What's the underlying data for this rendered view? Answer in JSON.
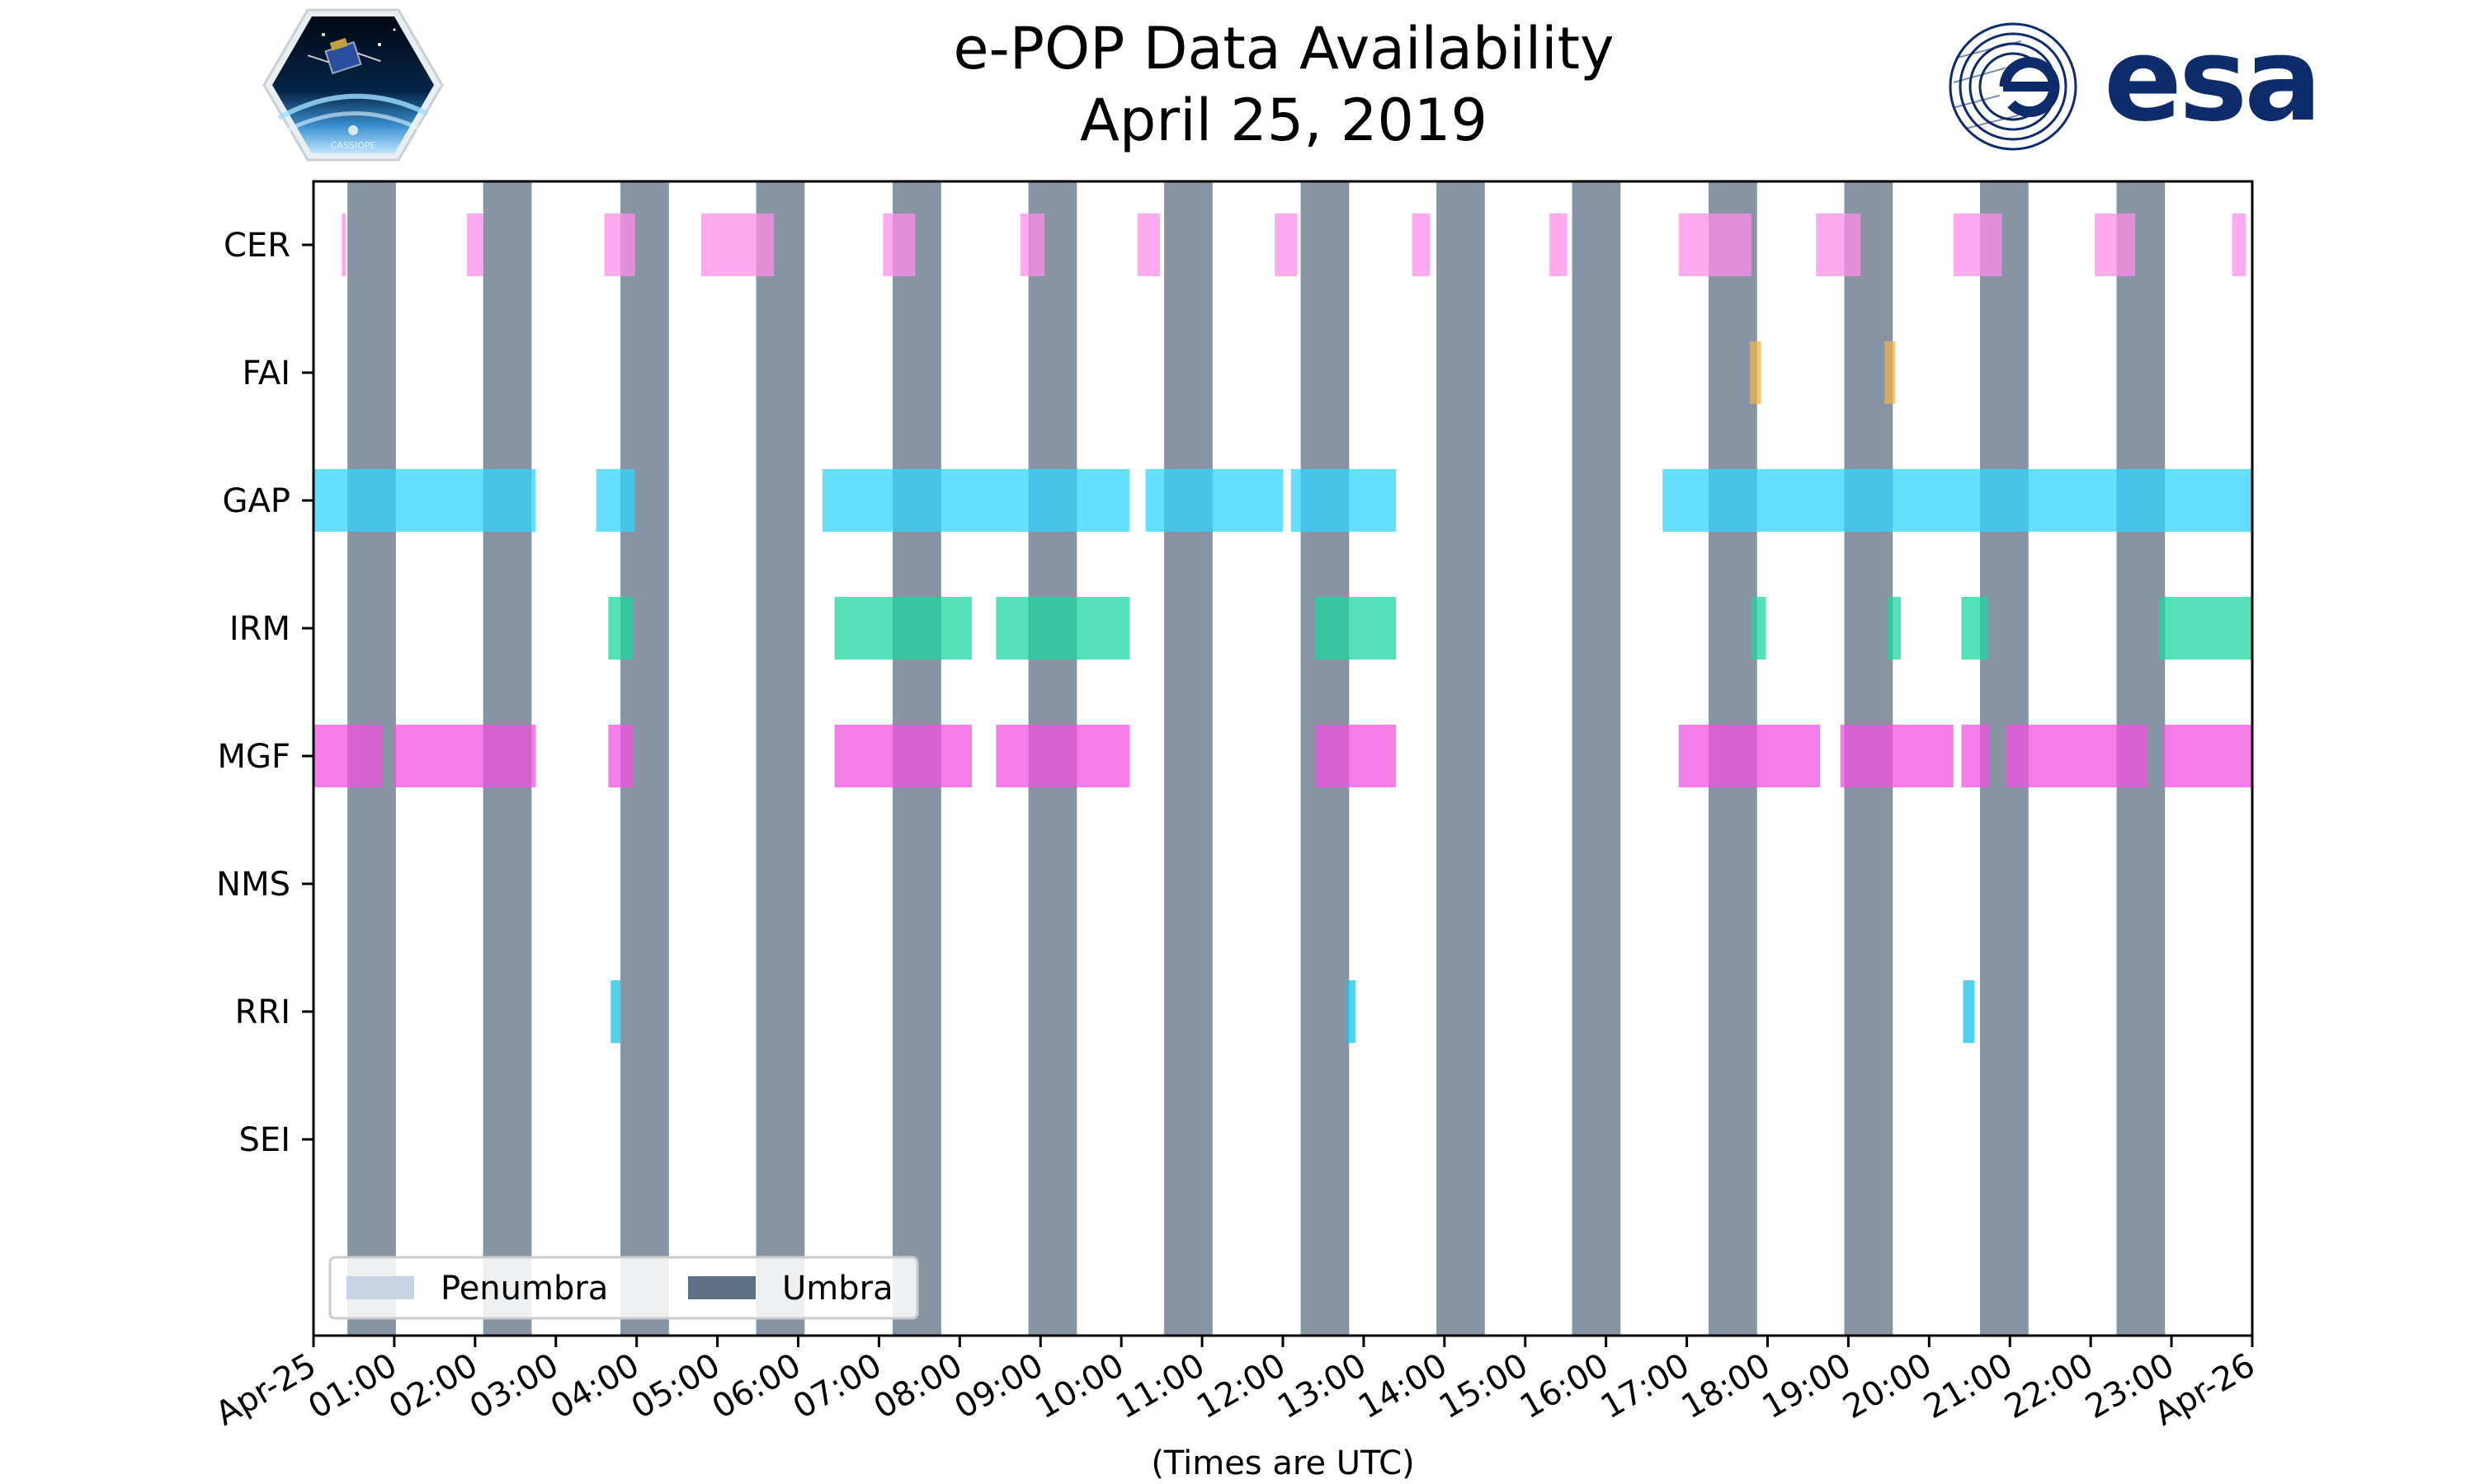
{
  "chart_data": {
    "type": "timeline",
    "title": "e-POP Data Availability",
    "subtitle": "April 25, 2019",
    "xlabel": "(Times are UTC)",
    "x_unit": "hours since 2019-04-25 00:00 UTC",
    "xlim": [
      0,
      24
    ],
    "x_ticks": [
      {
        "value": 0,
        "label": "Apr-25"
      },
      {
        "value": 1,
        "label": "01:00"
      },
      {
        "value": 2,
        "label": "02:00"
      },
      {
        "value": 3,
        "label": "03:00"
      },
      {
        "value": 4,
        "label": "04:00"
      },
      {
        "value": 5,
        "label": "05:00"
      },
      {
        "value": 6,
        "label": "06:00"
      },
      {
        "value": 7,
        "label": "07:00"
      },
      {
        "value": 8,
        "label": "08:00"
      },
      {
        "value": 9,
        "label": "09:00"
      },
      {
        "value": 10,
        "label": "10:00"
      },
      {
        "value": 11,
        "label": "11:00"
      },
      {
        "value": 12,
        "label": "12:00"
      },
      {
        "value": 13,
        "label": "13:00"
      },
      {
        "value": 14,
        "label": "14:00"
      },
      {
        "value": 15,
        "label": "15:00"
      },
      {
        "value": 16,
        "label": "16:00"
      },
      {
        "value": 17,
        "label": "17:00"
      },
      {
        "value": 18,
        "label": "18:00"
      },
      {
        "value": 19,
        "label": "19:00"
      },
      {
        "value": 20,
        "label": "20:00"
      },
      {
        "value": 21,
        "label": "21:00"
      },
      {
        "value": 22,
        "label": "22:00"
      },
      {
        "value": 23,
        "label": "23:00"
      },
      {
        "value": 24,
        "label": "Apr-26"
      }
    ],
    "categories": [
      "CER",
      "FAI",
      "GAP",
      "IRM",
      "MGF",
      "NMS",
      "RRI",
      "SEI"
    ],
    "series": [
      {
        "name": "CER",
        "color": "#ff8ee8",
        "intervals": [
          [
            0.35,
            0.4
          ],
          [
            1.9,
            2.1
          ],
          [
            3.6,
            3.98
          ],
          [
            4.8,
            5.7
          ],
          [
            7.05,
            7.45
          ],
          [
            8.75,
            9.05
          ],
          [
            10.2,
            10.48
          ],
          [
            11.9,
            12.18
          ],
          [
            13.6,
            13.82
          ],
          [
            15.3,
            15.52
          ],
          [
            16.9,
            17.8
          ],
          [
            18.6,
            19.15
          ],
          [
            20.3,
            20.9
          ],
          [
            22.05,
            22.55
          ],
          [
            23.75,
            23.92
          ]
        ]
      },
      {
        "name": "FAI",
        "color": "#f0b34a",
        "intervals": [
          [
            17.78,
            17.92
          ],
          [
            19.45,
            19.58
          ]
        ]
      },
      {
        "name": "GAP",
        "color": "#33d4ff",
        "intervals": [
          [
            0.0,
            2.75
          ],
          [
            3.5,
            3.98
          ],
          [
            6.3,
            10.1
          ],
          [
            10.3,
            12.0
          ],
          [
            12.1,
            13.4
          ],
          [
            16.7,
            24.0
          ]
        ]
      },
      {
        "name": "IRM",
        "color": "#1ed6a0",
        "intervals": [
          [
            3.65,
            3.95
          ],
          [
            6.45,
            8.15
          ],
          [
            8.45,
            10.1
          ],
          [
            12.4,
            13.4
          ],
          [
            17.8,
            17.98
          ],
          [
            19.48,
            19.65
          ],
          [
            20.4,
            20.72
          ],
          [
            22.85,
            24.0
          ]
        ]
      },
      {
        "name": "MGF",
        "color": "#f252e0",
        "intervals": [
          [
            0.0,
            0.85
          ],
          [
            1.0,
            2.75
          ],
          [
            3.65,
            3.95
          ],
          [
            6.45,
            8.15
          ],
          [
            8.45,
            10.1
          ],
          [
            12.4,
            13.4
          ],
          [
            16.9,
            18.65
          ],
          [
            18.9,
            20.3
          ],
          [
            20.4,
            20.75
          ],
          [
            20.95,
            22.7
          ],
          [
            22.9,
            24.0
          ]
        ]
      },
      {
        "name": "NMS",
        "color": "#f252e0",
        "intervals": []
      },
      {
        "name": "RRI",
        "color": "#19c2e6",
        "intervals": [
          [
            3.68,
            3.8
          ],
          [
            12.78,
            12.9
          ],
          [
            20.42,
            20.56
          ]
        ]
      },
      {
        "name": "SEI",
        "color": "#19c2e6",
        "intervals": []
      }
    ],
    "umbra": {
      "color": "#5d7086",
      "intervals": [
        [
          0.42,
          1.02
        ],
        [
          2.1,
          2.7
        ],
        [
          3.8,
          4.4
        ],
        [
          5.48,
          6.08
        ],
        [
          7.17,
          7.77
        ],
        [
          8.85,
          9.45
        ],
        [
          10.53,
          11.13
        ],
        [
          12.22,
          12.82
        ],
        [
          13.9,
          14.5
        ],
        [
          15.58,
          16.18
        ],
        [
          17.27,
          17.87
        ],
        [
          18.95,
          19.55
        ],
        [
          20.63,
          21.23
        ],
        [
          22.32,
          22.92
        ]
      ]
    },
    "legend": {
      "location": "lower-left",
      "entries": [
        {
          "label": "Penumbra",
          "color": "#c6d4e4"
        },
        {
          "label": "Umbra",
          "color": "#5d7086"
        }
      ]
    }
  },
  "logos": {
    "right_text": "esa",
    "left_badge_text": "CASSIOPE"
  }
}
